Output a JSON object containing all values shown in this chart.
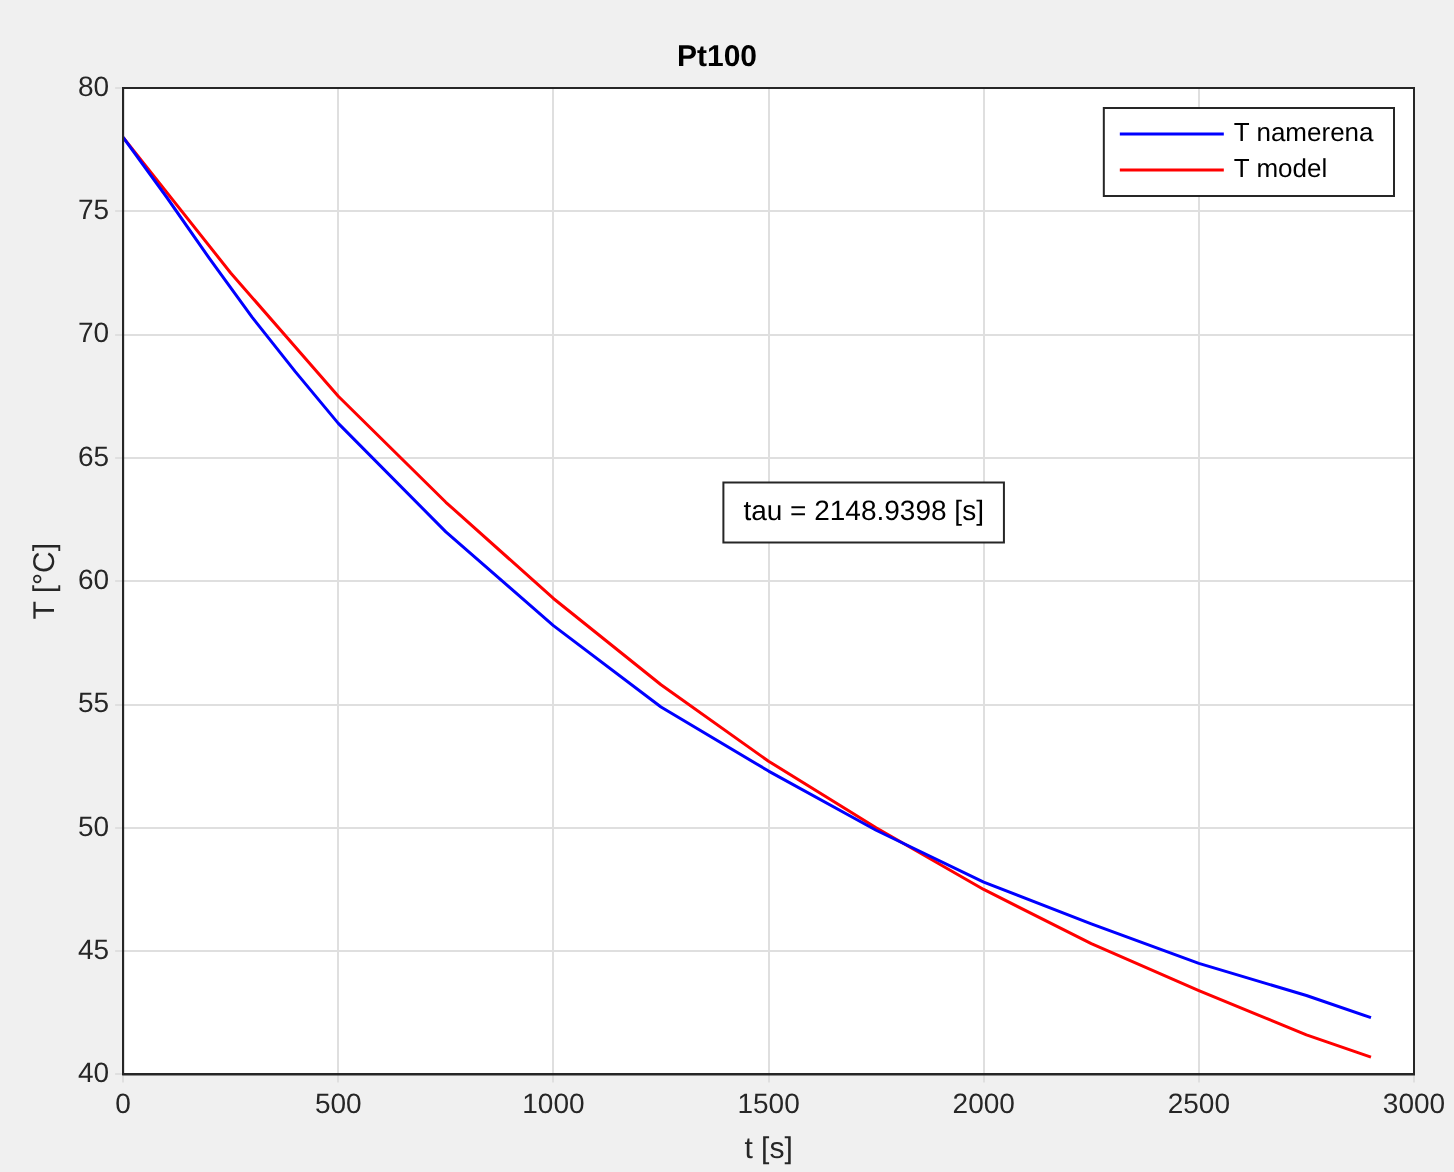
{
  "chart_data": {
    "type": "line",
    "title": "Pt100",
    "xlabel": "t [s]",
    "ylabel": "T [°C]",
    "xlim": [
      0,
      3000
    ],
    "xticks": [
      0,
      500,
      1000,
      1500,
      2000,
      2500,
      3000
    ],
    "ylim": [
      40,
      80
    ],
    "yticks": [
      40,
      45,
      50,
      55,
      60,
      65,
      70,
      75,
      80
    ],
    "grid": true,
    "legend": "top right",
    "marker": "none",
    "line_style": "solid",
    "annotations": [
      "tau = 2148.9398 [s]"
    ],
    "series": [
      {
        "name": "T namerena",
        "color": "#0000ff",
        "x": [
          0,
          100,
          200,
          300,
          400,
          500,
          750,
          1000,
          1250,
          1500,
          1750,
          2000,
          2250,
          2500,
          2750,
          2900
        ],
        "values": [
          78,
          75.6,
          73.1,
          70.7,
          68.5,
          66.4,
          62,
          58.2,
          54.9,
          52.3,
          49.9,
          47.8,
          46.1,
          44.5,
          43.2,
          42.3
        ]
      },
      {
        "name": "T model",
        "color": "#ff0000",
        "x": [
          0,
          250,
          500,
          750,
          1000,
          1250,
          1500,
          1750,
          2000,
          2250,
          2500,
          2750,
          2900
        ],
        "values": [
          78,
          72.5,
          67.5,
          63.2,
          59.3,
          55.8,
          52.7,
          50,
          47.5,
          45.3,
          43.4,
          41.6,
          40.7
        ]
      }
    ]
  }
}
